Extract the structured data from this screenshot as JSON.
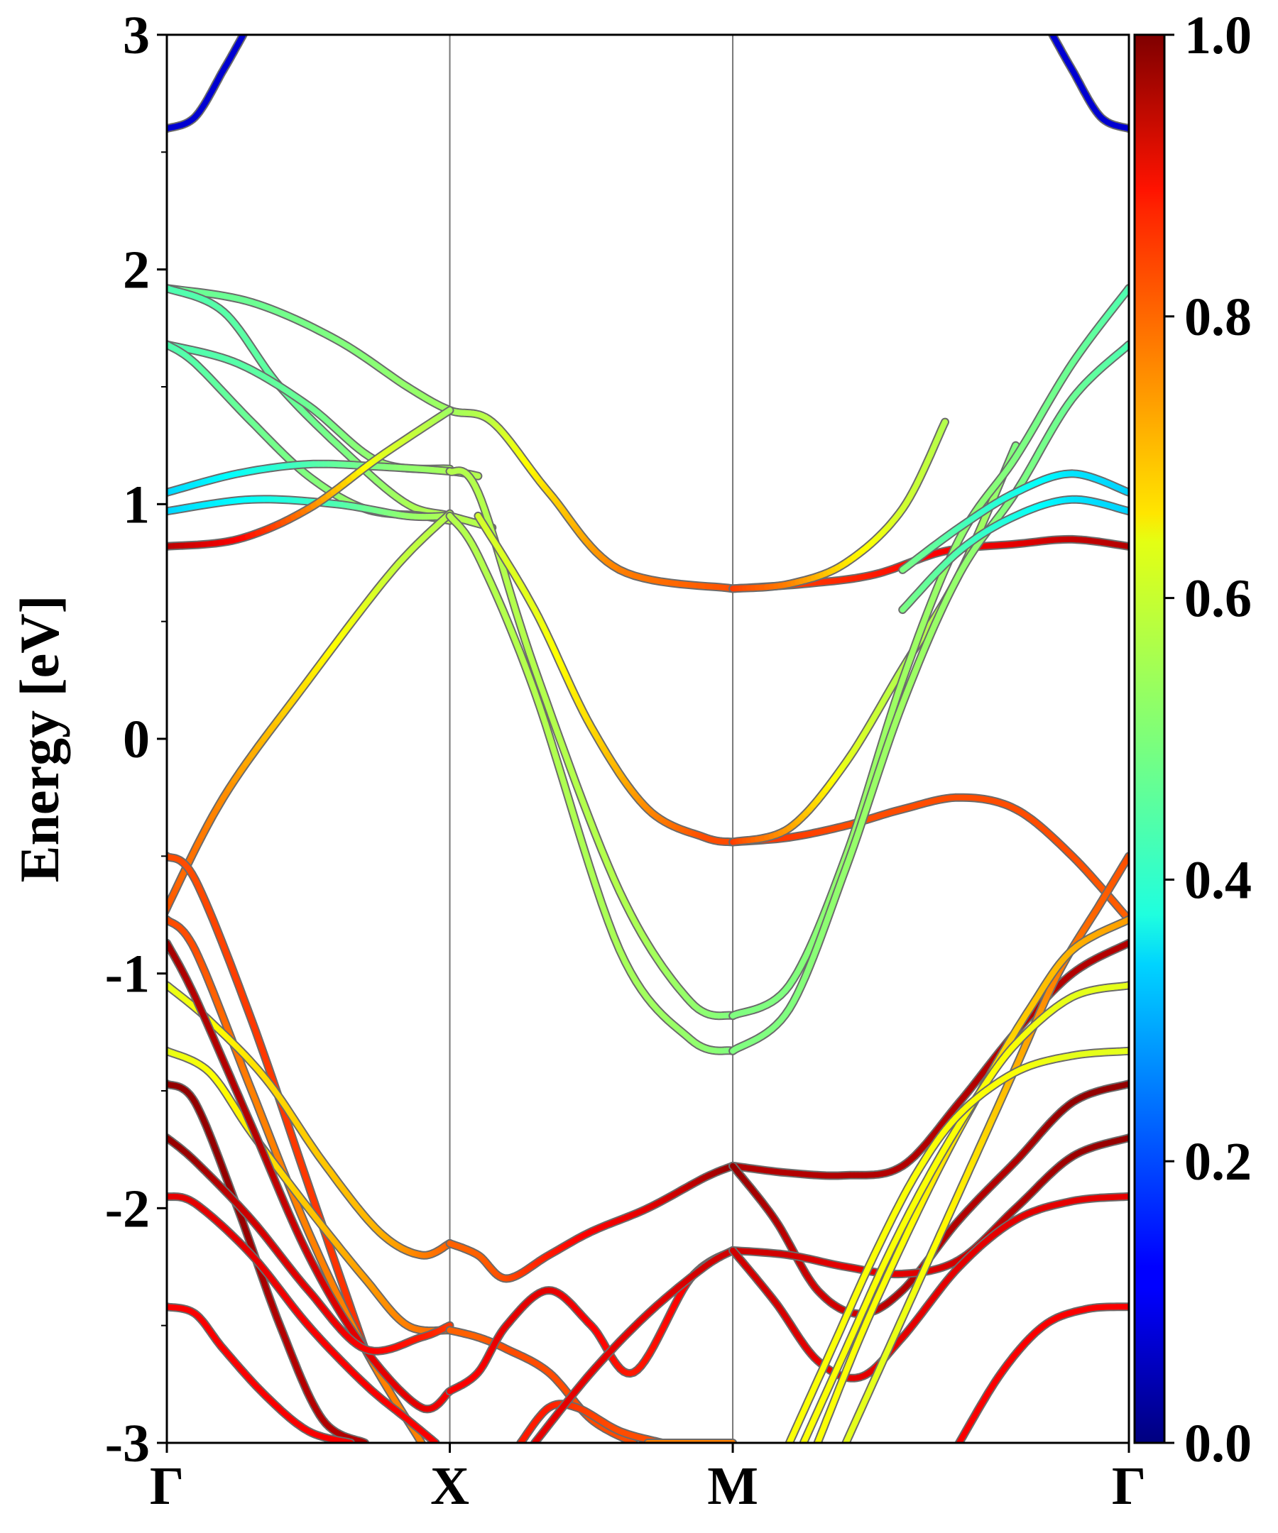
{
  "chart_data": {
    "type": "line",
    "title": "",
    "ylabel": "Energy [eV]",
    "xlabel": "",
    "ylim": [
      -3,
      3
    ],
    "y_ticks": [
      "-3",
      "-2",
      "-1",
      "0",
      "1",
      "2",
      "3"
    ],
    "y_tick_values": [
      -3,
      -2,
      -1,
      0,
      1,
      2,
      3
    ],
    "x_ticks": [
      "Γ",
      "X",
      "M",
      "Γ"
    ],
    "x_tick_positions": [
      0,
      1,
      2,
      3.4
    ],
    "vertical_gridlines_at": [
      1,
      2
    ],
    "colorbar": {
      "colormap": "jet",
      "range": [
        0.0,
        1.0
      ],
      "ticks": [
        "0.0",
        "0.2",
        "0.4",
        "0.6",
        "0.8",
        "1.0"
      ],
      "tick_values": [
        0.0,
        0.2,
        0.4,
        0.6,
        0.8,
        1.0
      ]
    },
    "series": [
      {
        "x": [
          0,
          0.1,
          0.2,
          0.27
        ],
        "y": [
          2.6,
          2.65,
          2.85,
          3.0
        ],
        "c": [
          0.08,
          0.08,
          0.08,
          0.08
        ]
      },
      {
        "x": [
          3.13,
          3.2,
          3.3,
          3.4
        ],
        "y": [
          3.0,
          2.85,
          2.65,
          2.6
        ],
        "c": [
          0.08,
          0.08,
          0.08,
          0.08
        ]
      },
      {
        "x": [
          0,
          0.3,
          0.6,
          0.85,
          1.0,
          1.15,
          1.35,
          1.6,
          2.0
        ],
        "y": [
          1.92,
          1.86,
          1.7,
          1.5,
          1.4,
          1.35,
          1.05,
          0.72,
          0.64
        ],
        "c": [
          0.48,
          0.48,
          0.5,
          0.52,
          0.53,
          0.56,
          0.66,
          0.75,
          0.8
        ]
      },
      {
        "x": [
          0,
          0.2,
          0.4,
          0.65,
          0.85,
          1.0,
          1.15
        ],
        "y": [
          1.92,
          1.82,
          1.5,
          1.2,
          1.0,
          0.95,
          0.9
        ],
        "c": [
          0.45,
          0.46,
          0.47,
          0.5,
          0.54,
          0.55,
          0.55
        ]
      },
      {
        "x": [
          0,
          0.25,
          0.5,
          0.75,
          1.0
        ],
        "y": [
          1.68,
          1.6,
          1.42,
          1.18,
          1.15
        ],
        "c": [
          0.45,
          0.46,
          0.48,
          0.52,
          0.53
        ]
      },
      {
        "x": [
          0,
          0.1,
          0.3,
          0.5,
          0.7,
          0.9,
          1.0
        ],
        "y": [
          1.68,
          1.6,
          1.35,
          1.12,
          0.98,
          0.95,
          0.93
        ],
        "c": [
          0.45,
          0.46,
          0.48,
          0.5,
          0.53,
          0.55,
          0.55
        ]
      },
      {
        "x": [
          0,
          0.25,
          0.5,
          0.75,
          1.0,
          1.1
        ],
        "y": [
          1.05,
          1.13,
          1.17,
          1.16,
          1.14,
          1.12
        ],
        "c": [
          0.33,
          0.38,
          0.45,
          0.5,
          0.54,
          0.55
        ]
      },
      {
        "x": [
          0,
          0.3,
          0.6,
          0.85,
          1.0
        ],
        "y": [
          0.97,
          1.02,
          1.0,
          0.95,
          0.95
        ],
        "c": [
          0.33,
          0.38,
          0.45,
          0.52,
          0.55
        ]
      },
      {
        "x": [
          0,
          0.25,
          0.5,
          0.75,
          1.0
        ],
        "y": [
          0.82,
          0.85,
          0.98,
          1.2,
          1.4
        ],
        "c": [
          0.95,
          0.88,
          0.75,
          0.6,
          0.53
        ]
      },
      {
        "x": [
          -0.02,
          0.2,
          0.5,
          0.8,
          1.0
        ],
        "y": [
          -0.77,
          -0.25,
          0.25,
          0.72,
          0.96
        ],
        "c": [
          0.8,
          0.74,
          0.65,
          0.57,
          0.55
        ]
      },
      {
        "x": [
          0,
          0.1,
          0.3,
          0.5,
          0.7
        ],
        "y": [
          -0.5,
          -0.6,
          -1.2,
          -1.9,
          -2.6
        ],
        "c": [
          0.8,
          0.8,
          0.82,
          0.82,
          0.83
        ]
      },
      {
        "x": [
          1.0,
          1.1,
          1.3,
          1.6,
          1.85,
          2.0
        ],
        "y": [
          1.14,
          1.05,
          0.3,
          -0.65,
          -1.12,
          -1.18
        ],
        "c": [
          0.55,
          0.55,
          0.55,
          0.55,
          0.52,
          0.5
        ]
      },
      {
        "x": [
          1.0,
          1.1,
          1.3,
          1.6,
          1.85,
          2.0
        ],
        "y": [
          0.95,
          0.78,
          0.2,
          -0.9,
          -1.28,
          -1.33
        ],
        "c": [
          0.55,
          0.55,
          0.55,
          0.54,
          0.52,
          0.5
        ]
      },
      {
        "x": [
          1.1,
          1.3,
          1.5,
          1.7,
          1.9,
          2.0
        ],
        "y": [
          0.95,
          0.55,
          0.05,
          -0.3,
          -0.42,
          -0.44
        ],
        "c": [
          0.58,
          0.6,
          0.66,
          0.74,
          0.8,
          0.8
        ]
      },
      {
        "x": [
          2.0,
          2.25,
          2.5,
          2.75,
          3.0,
          3.2,
          3.4
        ],
        "y": [
          0.64,
          0.66,
          0.7,
          0.8,
          0.83,
          0.85,
          0.82
        ],
        "c": [
          0.82,
          0.82,
          0.85,
          0.88,
          0.9,
          0.93,
          0.95
        ]
      },
      {
        "x": [
          2.0,
          2.2,
          2.4,
          2.6,
          2.75
        ],
        "y": [
          0.64,
          0.66,
          0.75,
          0.98,
          1.35
        ],
        "c": [
          0.82,
          0.75,
          0.65,
          0.58,
          0.55
        ]
      },
      {
        "x": [
          2.0,
          2.2,
          2.4,
          2.6,
          2.8,
          3.0,
          3.2,
          3.4
        ],
        "y": [
          -0.44,
          -0.42,
          -0.37,
          -0.3,
          -0.25,
          -0.3,
          -0.5,
          -0.77
        ],
        "c": [
          0.82,
          0.82,
          0.8,
          0.8,
          0.8,
          0.8,
          0.8,
          0.78
        ]
      },
      {
        "x": [
          2.0,
          2.2,
          2.4,
          2.6,
          2.8,
          3.0
        ],
        "y": [
          -0.44,
          -0.38,
          -0.1,
          0.3,
          0.7,
          1.25
        ],
        "c": [
          0.82,
          0.72,
          0.6,
          0.55,
          0.55,
          0.5
        ]
      },
      {
        "x": [
          2.0,
          2.2,
          2.4,
          2.6,
          2.8,
          3.0,
          3.2,
          3.4
        ],
        "y": [
          -1.18,
          -1.05,
          -0.5,
          0.25,
          0.85,
          1.2,
          1.6,
          1.92
        ],
        "c": [
          0.5,
          0.5,
          0.52,
          0.53,
          0.52,
          0.5,
          0.48,
          0.45
        ]
      },
      {
        "x": [
          2.0,
          2.2,
          2.4,
          2.6,
          2.8,
          3.0,
          3.2,
          3.4
        ],
        "y": [
          -1.33,
          -1.15,
          -0.55,
          0.15,
          0.7,
          1.05,
          1.45,
          1.68
        ],
        "c": [
          0.5,
          0.5,
          0.52,
          0.53,
          0.52,
          0.5,
          0.48,
          0.45
        ]
      },
      {
        "x": [
          2.6,
          2.8,
          3.0,
          3.2,
          3.4
        ],
        "y": [
          0.72,
          0.9,
          1.05,
          1.13,
          1.05
        ],
        "c": [
          0.5,
          0.45,
          0.4,
          0.35,
          0.33
        ]
      },
      {
        "x": [
          2.6,
          2.8,
          3.0,
          3.2,
          3.4
        ],
        "y": [
          0.55,
          0.8,
          0.95,
          1.02,
          0.97
        ],
        "c": [
          0.5,
          0.45,
          0.4,
          0.35,
          0.33
        ]
      },
      {
        "x": [
          0,
          0.1,
          0.3,
          0.5,
          0.7,
          0.9
        ],
        "y": [
          -0.77,
          -0.9,
          -1.5,
          -2.1,
          -2.6,
          -3.0
        ],
        "c": [
          0.8,
          0.8,
          0.75,
          0.75,
          0.75,
          0.75
        ]
      },
      {
        "x": [
          0,
          0.15,
          0.35,
          0.55,
          0.75,
          0.9,
          1.0
        ],
        "y": [
          -1.05,
          -1.2,
          -1.45,
          -1.8,
          -2.1,
          -2.2,
          -2.15
        ],
        "c": [
          0.6,
          0.62,
          0.66,
          0.68,
          0.7,
          0.75,
          0.78
        ]
      },
      {
        "x": [
          0,
          0.15,
          0.3,
          0.5,
          0.7,
          0.85,
          1.0
        ],
        "y": [
          -1.33,
          -1.42,
          -1.68,
          -2.0,
          -2.3,
          -2.5,
          -2.52
        ],
        "c": [
          0.6,
          0.62,
          0.64,
          0.68,
          0.72,
          0.75,
          0.78
        ]
      },
      {
        "x": [
          0,
          0.1,
          0.3,
          0.5,
          0.7,
          0.9,
          1.0
        ],
        "y": [
          -0.87,
          -1.1,
          -1.65,
          -2.2,
          -2.6,
          -2.85,
          -2.78
        ],
        "c": [
          0.97,
          0.95,
          0.95,
          0.92,
          0.9,
          0.9,
          0.88
        ]
      },
      {
        "x": [
          0,
          0.1,
          0.25,
          0.4,
          0.55,
          0.7
        ],
        "y": [
          -1.47,
          -1.55,
          -2.0,
          -2.5,
          -2.9,
          -3.0
        ],
        "c": [
          0.98,
          0.98,
          0.98,
          0.95,
          0.95,
          0.95
        ]
      },
      {
        "x": [
          0,
          0.1,
          0.3,
          0.5,
          0.7,
          0.9,
          1.0
        ],
        "y": [
          -1.7,
          -1.8,
          -2.05,
          -2.35,
          -2.6,
          -2.55,
          -2.5
        ],
        "c": [
          0.98,
          0.97,
          0.92,
          0.9,
          0.88,
          0.85,
          0.82
        ]
      },
      {
        "x": [
          0,
          0.1,
          0.3,
          0.5,
          0.7,
          0.85,
          0.95
        ],
        "y": [
          -1.95,
          -1.98,
          -2.2,
          -2.5,
          -2.75,
          -2.9,
          -3.0
        ],
        "c": [
          0.9,
          0.9,
          0.9,
          0.88,
          0.88,
          0.88,
          0.88
        ]
      },
      {
        "x": [
          0,
          0.1,
          0.2,
          0.35,
          0.5,
          0.65
        ],
        "y": [
          -2.42,
          -2.45,
          -2.6,
          -2.8,
          -2.95,
          -3.0
        ],
        "c": [
          0.88,
          0.88,
          0.88,
          0.88,
          0.88,
          0.88
        ]
      },
      {
        "x": [
          1.0,
          1.1,
          1.2,
          1.35,
          1.5,
          1.7,
          1.9,
          2.0
        ],
        "y": [
          -2.15,
          -2.2,
          -2.3,
          -2.2,
          -2.1,
          -2.0,
          -1.87,
          -1.82
        ],
        "c": [
          0.78,
          0.78,
          0.8,
          0.85,
          0.88,
          0.9,
          0.95,
          0.98
        ]
      },
      {
        "x": [
          1.0,
          1.1,
          1.2,
          1.35,
          1.5,
          1.65
        ],
        "y": [
          -2.52,
          -2.55,
          -2.6,
          -2.7,
          -2.9,
          -3.0
        ],
        "c": [
          0.78,
          0.78,
          0.8,
          0.8,
          0.8,
          0.8
        ]
      },
      {
        "x": [
          1.0,
          1.1,
          1.2,
          1.35,
          1.5,
          1.65,
          1.85,
          2.0
        ],
        "y": [
          -2.78,
          -2.7,
          -2.5,
          -2.35,
          -2.5,
          -2.7,
          -2.3,
          -2.18
        ],
        "c": [
          0.88,
          0.88,
          0.9,
          0.9,
          0.88,
          0.85,
          0.88,
          0.9
        ]
      },
      {
        "x": [
          1.25,
          1.35,
          1.45,
          1.6,
          1.75
        ],
        "y": [
          -3.0,
          -2.85,
          -2.85,
          -2.95,
          -3.0
        ],
        "c": [
          0.85,
          0.85,
          0.82,
          0.8,
          0.8
        ]
      },
      {
        "x": [
          1.3,
          1.5,
          1.7,
          1.9,
          2.0
        ],
        "y": [
          -3.0,
          -2.7,
          -2.45,
          -2.25,
          -2.18
        ],
        "c": [
          0.9,
          0.9,
          0.9,
          0.92,
          0.92
        ]
      },
      {
        "x": [
          2.0,
          2.2,
          2.4,
          2.6,
          2.8,
          3.0,
          3.2,
          3.4
        ],
        "y": [
          -1.82,
          -1.85,
          -1.86,
          -1.82,
          -1.55,
          -1.25,
          -1.0,
          -0.87
        ],
        "c": [
          0.95,
          0.95,
          0.95,
          0.95,
          0.95,
          0.95,
          0.95,
          0.95
        ]
      },
      {
        "x": [
          2.0,
          2.15,
          2.3,
          2.45,
          2.6,
          2.8,
          3.0,
          3.2,
          3.4
        ],
        "y": [
          -1.82,
          -2.05,
          -2.35,
          -2.45,
          -2.35,
          -2.05,
          -1.8,
          -1.55,
          -1.47
        ],
        "c": [
          0.98,
          0.95,
          0.92,
          0.92,
          0.95,
          0.95,
          0.95,
          0.98,
          0.98
        ]
      },
      {
        "x": [
          2.0,
          2.2,
          2.4,
          2.6,
          2.8,
          3.0,
          3.2,
          3.4
        ],
        "y": [
          -2.18,
          -2.2,
          -2.25,
          -2.28,
          -2.22,
          -2.0,
          -1.78,
          -1.7
        ],
        "c": [
          0.92,
          0.92,
          0.9,
          0.9,
          0.92,
          0.95,
          0.97,
          0.98
        ]
      },
      {
        "x": [
          2.0,
          2.15,
          2.3,
          2.45,
          2.6,
          2.8,
          3.0,
          3.2,
          3.4
        ],
        "y": [
          -2.18,
          -2.4,
          -2.65,
          -2.72,
          -2.55,
          -2.25,
          -2.05,
          -1.97,
          -1.95
        ],
        "c": [
          0.92,
          0.92,
          0.9,
          0.9,
          0.9,
          0.9,
          0.9,
          0.9,
          0.9
        ]
      },
      {
        "x": [
          2.8,
          2.95,
          3.1,
          3.25,
          3.4
        ],
        "y": [
          -3.0,
          -2.7,
          -2.5,
          -2.43,
          -2.42
        ],
        "c": [
          0.88,
          0.88,
          0.88,
          0.88,
          0.88
        ]
      },
      {
        "x": [
          2.4,
          2.55,
          2.7,
          2.85,
          3.0,
          3.15,
          3.3,
          3.4
        ],
        "y": [
          -3.0,
          -2.6,
          -2.2,
          -1.8,
          -1.4,
          -1.0,
          -0.7,
          -0.5
        ],
        "c": [
          0.6,
          0.6,
          0.62,
          0.65,
          0.7,
          0.75,
          0.78,
          0.8
        ]
      },
      {
        "x": [
          2.3,
          2.45,
          2.6,
          2.75,
          2.9,
          3.05,
          3.2,
          3.4
        ],
        "y": [
          -3.0,
          -2.55,
          -2.15,
          -1.78,
          -1.45,
          -1.15,
          -0.9,
          -0.77
        ],
        "c": [
          0.62,
          0.62,
          0.62,
          0.65,
          0.65,
          0.68,
          0.7,
          0.72
        ]
      },
      {
        "x": [
          2.25,
          2.4,
          2.55,
          2.7,
          2.85,
          3.0,
          3.2,
          3.4
        ],
        "y": [
          -3.0,
          -2.6,
          -2.2,
          -1.85,
          -1.55,
          -1.3,
          -1.1,
          -1.05
        ],
        "c": [
          0.62,
          0.62,
          0.62,
          0.62,
          0.62,
          0.62,
          0.6,
          0.6
        ]
      },
      {
        "x": [
          2.2,
          2.35,
          2.5,
          2.65,
          2.8,
          3.0,
          3.2,
          3.4
        ],
        "y": [
          -3.0,
          -2.6,
          -2.2,
          -1.85,
          -1.6,
          -1.42,
          -1.35,
          -1.33
        ],
        "c": [
          0.62,
          0.62,
          0.62,
          0.62,
          0.62,
          0.62,
          0.6,
          0.6
        ]
      },
      {
        "x": [
          1.7,
          1.85,
          2.0
        ],
        "y": [
          -3.0,
          -3.0,
          -3.0
        ],
        "c": [
          0.75,
          0.75,
          0.75
        ]
      }
    ]
  }
}
